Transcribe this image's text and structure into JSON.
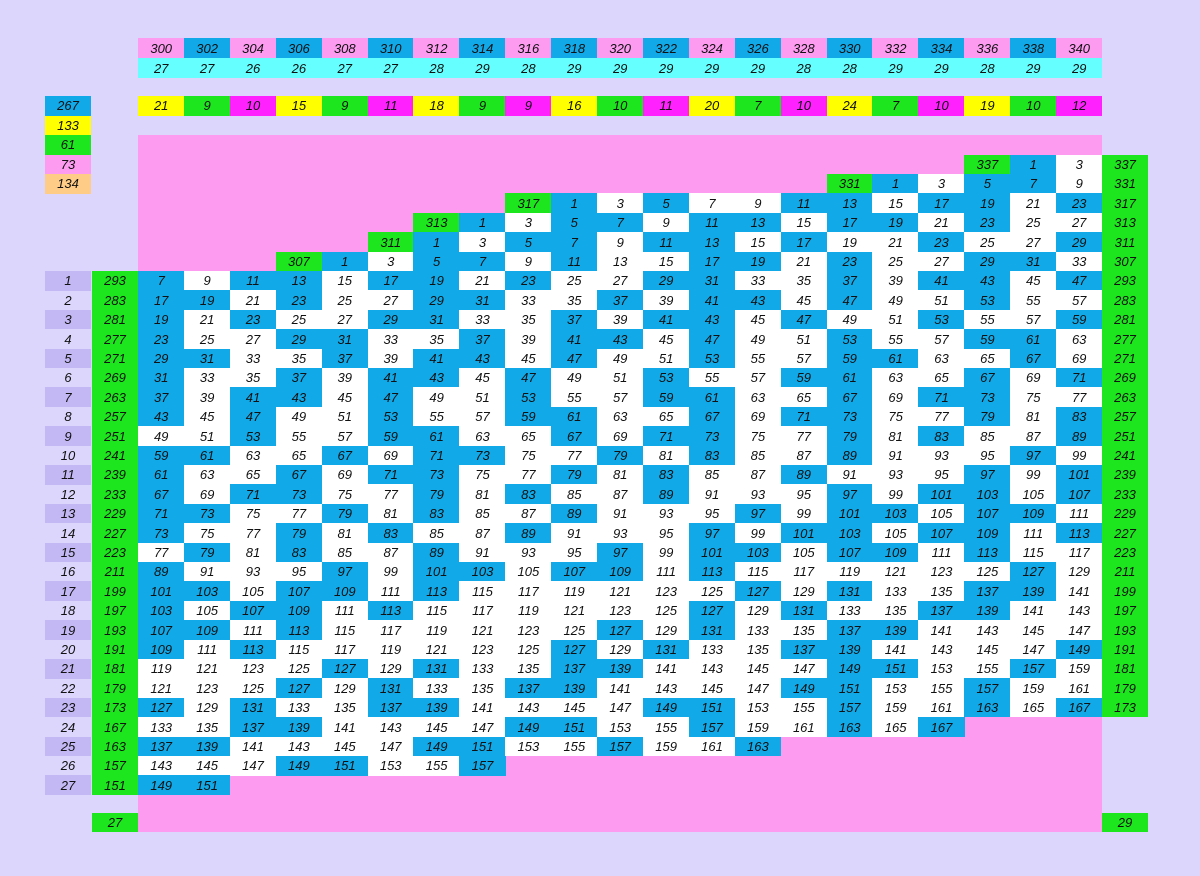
{
  "header": {
    "top": [
      300,
      302,
      304,
      306,
      308,
      310,
      312,
      314,
      316,
      318,
      320,
      322,
      324,
      326,
      328,
      330,
      332,
      334,
      336,
      338,
      340
    ],
    "counts": [
      27,
      27,
      26,
      26,
      27,
      27,
      28,
      29,
      28,
      29,
      29,
      29,
      29,
      29,
      28,
      28,
      29,
      29,
      28,
      29,
      29
    ],
    "groups": [
      21,
      9,
      10,
      15,
      9,
      11,
      18,
      9,
      9,
      16,
      10,
      11,
      20,
      7,
      10,
      24,
      7,
      10,
      19,
      10,
      12
    ]
  },
  "legend": [
    267,
    133,
    61,
    73,
    134
  ],
  "upper_rows": [
    {
      "key": 337,
      "values": [
        1,
        3
      ],
      "highlight": [
        true,
        false
      ],
      "right": 337
    },
    {
      "key": 331,
      "values": [
        1,
        3,
        5,
        7,
        9
      ],
      "highlight": [
        true,
        false,
        true,
        true,
        false
      ],
      "right": 331
    },
    {
      "key": 317,
      "values": [
        1,
        3,
        5,
        7,
        9,
        11,
        13,
        15,
        17,
        19,
        21,
        23
      ],
      "highlight": [
        true,
        false,
        true,
        false,
        false,
        true,
        true,
        false,
        true,
        true,
        false,
        true
      ],
      "right": 317
    },
    {
      "key": 313,
      "values": [
        1,
        3,
        5,
        7,
        9,
        11,
        13,
        15,
        17,
        19,
        21,
        23,
        25,
        27
      ],
      "highlight": [
        true,
        false,
        true,
        true,
        false,
        true,
        true,
        false,
        true,
        true,
        false,
        true,
        false,
        false
      ],
      "right": 313
    },
    {
      "key": 311,
      "values": [
        1,
        3,
        5,
        7,
        9,
        11,
        13,
        15,
        17,
        19,
        21,
        23,
        25,
        27,
        29
      ],
      "highlight": [
        true,
        false,
        true,
        true,
        false,
        true,
        true,
        false,
        true,
        false,
        false,
        true,
        false,
        false,
        true
      ],
      "right": 311
    },
    {
      "key": 307,
      "values": [
        1,
        3,
        5,
        7,
        9,
        11,
        13,
        15,
        17,
        19,
        21,
        23,
        25,
        27,
        29,
        31,
        33
      ],
      "highlight": [
        true,
        false,
        true,
        true,
        false,
        true,
        false,
        false,
        true,
        true,
        false,
        true,
        false,
        false,
        true,
        true,
        false
      ],
      "right": 307
    }
  ],
  "highlight_rule": "prime",
  "rows": [
    {
      "label": 1,
      "key": 293,
      "right": 293,
      "values": [
        7,
        9,
        11,
        13,
        15,
        17,
        19,
        21,
        23,
        25,
        27,
        29,
        31,
        33,
        35,
        37,
        39,
        41,
        43,
        45,
        47
      ]
    },
    {
      "label": 2,
      "key": 283,
      "right": 283,
      "values": [
        17,
        19,
        21,
        23,
        25,
        27,
        29,
        31,
        33,
        35,
        37,
        39,
        41,
        43,
        45,
        47,
        49,
        51,
        53,
        55,
        57
      ]
    },
    {
      "label": 3,
      "key": 281,
      "right": 281,
      "values": [
        19,
        21,
        23,
        25,
        27,
        29,
        31,
        33,
        35,
        37,
        39,
        41,
        43,
        45,
        47,
        49,
        51,
        53,
        55,
        57,
        59
      ]
    },
    {
      "label": 4,
      "key": 277,
      "right": 277,
      "values": [
        23,
        25,
        27,
        29,
        31,
        33,
        35,
        37,
        39,
        41,
        43,
        45,
        47,
        49,
        51,
        53,
        55,
        57,
        59,
        61,
        63
      ]
    },
    {
      "label": 5,
      "key": 271,
      "right": 271,
      "values": [
        29,
        31,
        33,
        35,
        37,
        39,
        41,
        43,
        45,
        47,
        49,
        51,
        53,
        55,
        57,
        59,
        61,
        63,
        65,
        67,
        69
      ]
    },
    {
      "label": 6,
      "key": 269,
      "right": 269,
      "values": [
        31,
        33,
        35,
        37,
        39,
        41,
        43,
        45,
        47,
        49,
        51,
        53,
        55,
        57,
        59,
        61,
        63,
        65,
        67,
        69,
        71
      ]
    },
    {
      "label": 7,
      "key": 263,
      "right": 263,
      "values": [
        37,
        39,
        41,
        43,
        45,
        47,
        49,
        51,
        53,
        55,
        57,
        59,
        61,
        63,
        65,
        67,
        69,
        71,
        73,
        75,
        77
      ]
    },
    {
      "label": 8,
      "key": 257,
      "right": 257,
      "values": [
        43,
        45,
        47,
        49,
        51,
        53,
        55,
        57,
        59,
        61,
        63,
        65,
        67,
        69,
        71,
        73,
        75,
        77,
        79,
        81,
        83
      ]
    },
    {
      "label": 9,
      "key": 251,
      "right": 251,
      "values": [
        49,
        51,
        53,
        55,
        57,
        59,
        61,
        63,
        65,
        67,
        69,
        71,
        73,
        75,
        77,
        79,
        81,
        83,
        85,
        87,
        89
      ]
    },
    {
      "label": 10,
      "key": 241,
      "right": 241,
      "values": [
        59,
        61,
        63,
        65,
        67,
        69,
        71,
        73,
        75,
        77,
        79,
        81,
        83,
        85,
        87,
        89,
        91,
        93,
        95,
        97,
        99
      ]
    },
    {
      "label": 11,
      "key": 239,
      "right": 239,
      "values": [
        61,
        63,
        65,
        67,
        69,
        71,
        73,
        75,
        77,
        79,
        81,
        83,
        85,
        87,
        89,
        91,
        93,
        95,
        97,
        99,
        101
      ]
    },
    {
      "label": 12,
      "key": 233,
      "right": 233,
      "values": [
        67,
        69,
        71,
        73,
        75,
        77,
        79,
        81,
        83,
        85,
        87,
        89,
        91,
        93,
        95,
        97,
        99,
        101,
        103,
        105,
        107
      ]
    },
    {
      "label": 13,
      "key": 229,
      "right": 229,
      "values": [
        71,
        73,
        75,
        77,
        79,
        81,
        83,
        85,
        87,
        89,
        91,
        93,
        95,
        97,
        99,
        101,
        103,
        105,
        107,
        109,
        111
      ]
    },
    {
      "label": 14,
      "key": 227,
      "right": 227,
      "values": [
        73,
        75,
        77,
        79,
        81,
        83,
        85,
        87,
        89,
        91,
        93,
        95,
        97,
        99,
        101,
        103,
        105,
        107,
        109,
        111,
        113
      ]
    },
    {
      "label": 15,
      "key": 223,
      "right": 223,
      "values": [
        77,
        79,
        81,
        83,
        85,
        87,
        89,
        91,
        93,
        95,
        97,
        99,
        101,
        103,
        105,
        107,
        109,
        111,
        113,
        115,
        117
      ]
    },
    {
      "label": 16,
      "key": 211,
      "right": 211,
      "values": [
        89,
        91,
        93,
        95,
        97,
        99,
        101,
        103,
        105,
        107,
        109,
        111,
        113,
        115,
        117,
        119,
        121,
        123,
        125,
        127,
        129
      ]
    },
    {
      "label": 17,
      "key": 199,
      "right": 199,
      "values": [
        101,
        103,
        105,
        107,
        109,
        111,
        113,
        115,
        117,
        119,
        121,
        123,
        125,
        127,
        129,
        131,
        133,
        135,
        137,
        139,
        141
      ]
    },
    {
      "label": 18,
      "key": 197,
      "right": 197,
      "values": [
        103,
        105,
        107,
        109,
        111,
        113,
        115,
        117,
        119,
        121,
        123,
        125,
        127,
        129,
        131,
        133,
        135,
        137,
        139,
        141,
        143
      ]
    },
    {
      "label": 19,
      "key": 193,
      "right": 193,
      "values": [
        107,
        109,
        111,
        113,
        115,
        117,
        119,
        121,
        123,
        125,
        127,
        129,
        131,
        133,
        135,
        137,
        139,
        141,
        143,
        145,
        147
      ]
    },
    {
      "label": 20,
      "key": 191,
      "right": 191,
      "values": [
        109,
        111,
        113,
        115,
        117,
        119,
        121,
        123,
        125,
        127,
        129,
        131,
        133,
        135,
        137,
        139,
        141,
        143,
        145,
        147,
        149
      ]
    },
    {
      "label": 21,
      "key": 181,
      "right": 181,
      "values": [
        119,
        121,
        123,
        125,
        127,
        129,
        131,
        133,
        135,
        137,
        139,
        141,
        143,
        145,
        147,
        149,
        151,
        153,
        155,
        157,
        159
      ]
    },
    {
      "label": 22,
      "key": 179,
      "right": 179,
      "values": [
        121,
        123,
        125,
        127,
        129,
        131,
        133,
        135,
        137,
        139,
        141,
        143,
        145,
        147,
        149,
        151,
        153,
        155,
        157,
        159,
        161
      ]
    },
    {
      "label": 23,
      "key": 173,
      "right": 173,
      "values": [
        127,
        129,
        131,
        133,
        135,
        137,
        139,
        141,
        143,
        145,
        147,
        149,
        151,
        153,
        155,
        157,
        159,
        161,
        163,
        165,
        167
      ]
    },
    {
      "label": 24,
      "key": 167,
      "values": [
        133,
        135,
        137,
        139,
        141,
        143,
        145,
        147,
        149,
        151,
        153,
        155,
        157,
        159,
        161,
        163,
        165,
        167
      ]
    },
    {
      "label": 25,
      "key": 163,
      "values": [
        137,
        139,
        141,
        143,
        145,
        147,
        149,
        151,
        153,
        155,
        157,
        159,
        161,
        163
      ]
    },
    {
      "label": 26,
      "key": 157,
      "values": [
        143,
        145,
        147,
        149,
        151,
        153,
        155,
        157
      ]
    },
    {
      "label": 27,
      "key": 151,
      "values": [
        149,
        151
      ]
    }
  ],
  "footer": {
    "left": 27,
    "right": 29
  }
}
